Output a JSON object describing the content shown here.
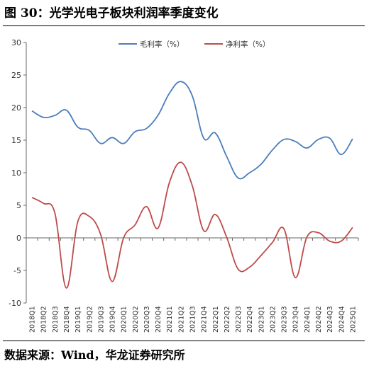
{
  "figure": {
    "title": "图 30：光学光电子板块利润率季度变化",
    "source": "数据来源：Wind，华龙证券研究所"
  },
  "chart_data": {
    "type": "line",
    "categories": [
      "2018Q1",
      "2018Q2",
      "2018Q3",
      "2018Q4",
      "2019Q1",
      "2019Q2",
      "2019Q3",
      "2019Q4",
      "2020Q1",
      "2020Q2",
      "2020Q3",
      "2020Q4",
      "2021Q1",
      "2021Q2",
      "2021Q3",
      "2021Q4",
      "2022Q1",
      "2022Q2",
      "2022Q3",
      "2022Q4",
      "2023Q1",
      "2023Q2",
      "2023Q3",
      "2023Q4",
      "2024Q1",
      "2024Q2",
      "2024Q3",
      "2024Q4",
      "2025Q1"
    ],
    "ylim": [
      -10,
      30
    ],
    "yticks": [
      -10,
      -5,
      0,
      5,
      10,
      15,
      20,
      25,
      30
    ],
    "legend_position": "top-center",
    "series": [
      {
        "name": "毛利率（%）",
        "color": "#4A7EBB",
        "values": [
          19.5,
          18.5,
          18.8,
          19.6,
          17.0,
          16.5,
          14.5,
          15.4,
          14.5,
          16.3,
          16.8,
          18.8,
          22.2,
          24.0,
          21.8,
          15.3,
          16.1,
          12.5,
          9.2,
          10.0,
          11.3,
          13.5,
          15.1,
          14.8,
          13.8,
          15.1,
          15.3,
          12.8,
          15.2
        ]
      },
      {
        "name": "净利率（%）",
        "color": "#BE4B48",
        "values": [
          6.2,
          5.3,
          3.8,
          -7.7,
          2.5,
          3.3,
          0.5,
          -6.7,
          0.0,
          2.0,
          4.8,
          1.5,
          8.5,
          11.6,
          8.0,
          1.1,
          3.6,
          0.1,
          -4.8,
          -4.5,
          -2.7,
          -0.7,
          1.4,
          -6.1,
          0.1,
          0.8,
          -0.5,
          -0.5,
          1.6
        ]
      }
    ]
  }
}
